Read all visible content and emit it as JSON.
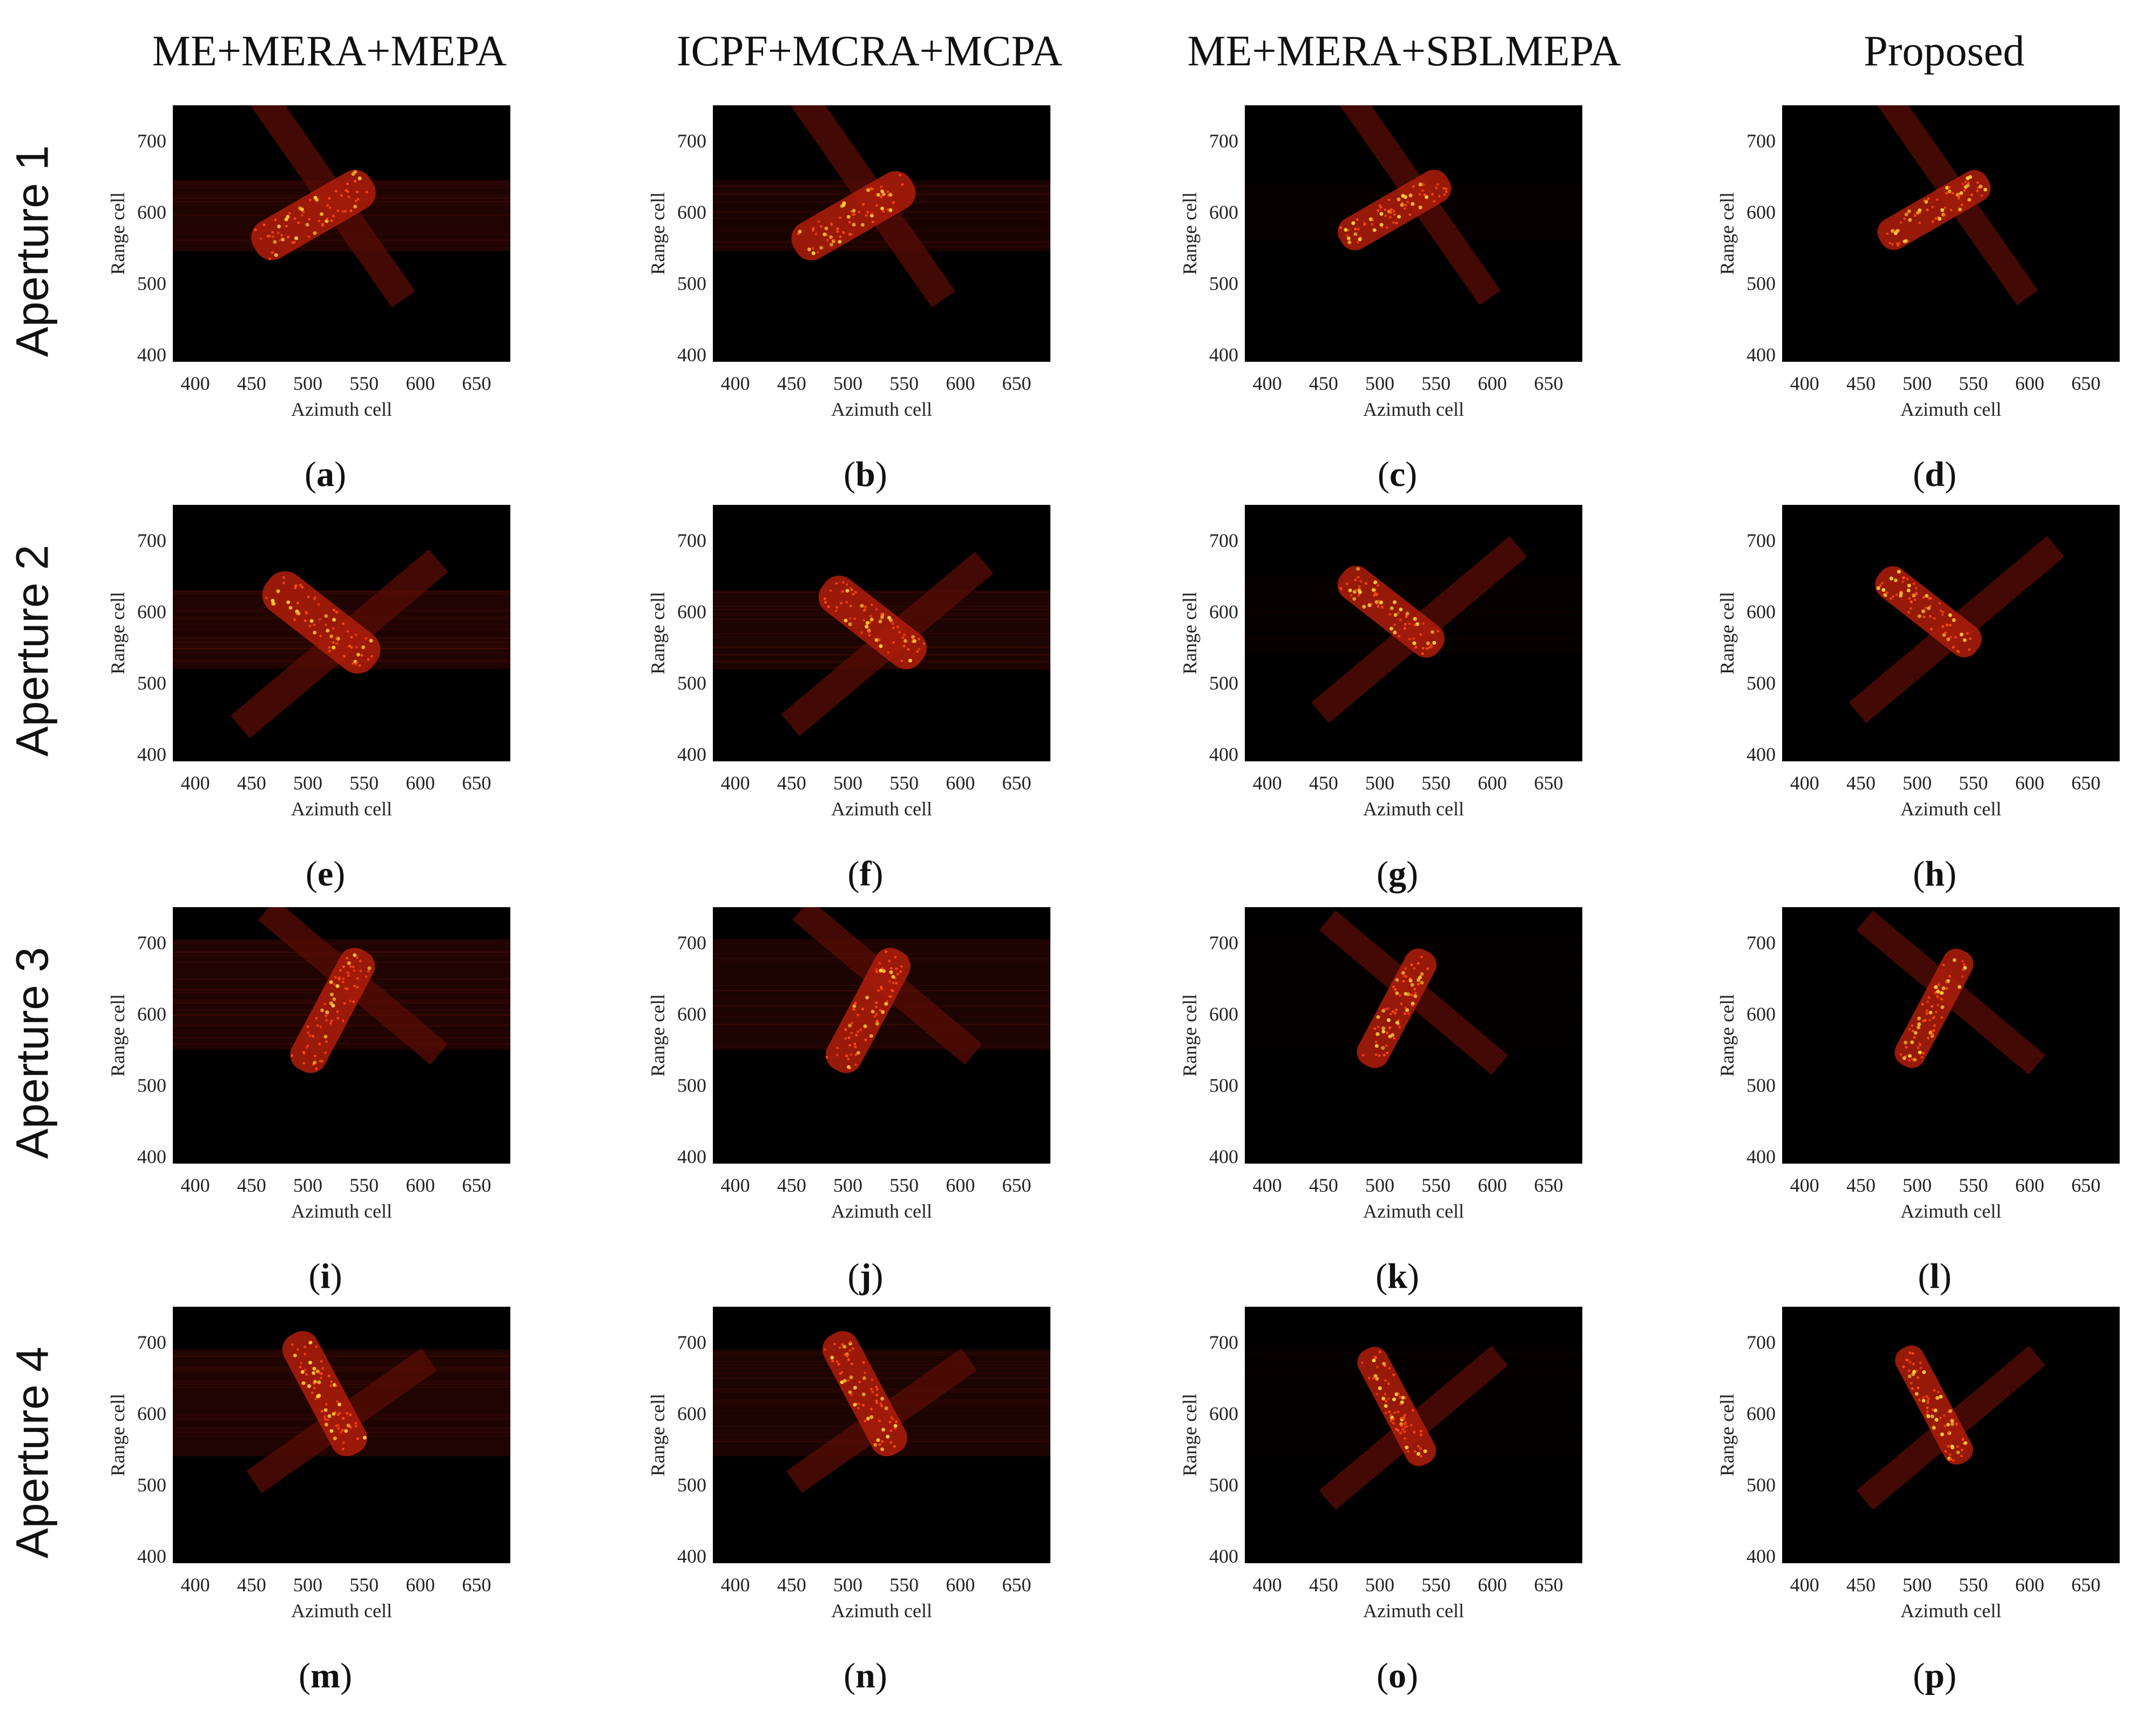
{
  "figure": {
    "column_headers": [
      "ME+MERA+MEPA",
      "ICPF+MCRA+MCPA",
      "ME+MERA+SBLMEPA",
      "Proposed"
    ],
    "row_labels": [
      "Aperture 1",
      "Aperture 2",
      "Aperture 3",
      "Aperture 4"
    ]
  },
  "colors": {
    "background": "#000000",
    "target_dim": "#5a0c05",
    "target_mid": "#b01d0a",
    "target_bright": "#ff4a10",
    "scatter_hot": "#ffd23a"
  },
  "chart_data": [
    {
      "type": "heatmap",
      "panel": "a",
      "caption": "a",
      "method": "ME+MERA+MEPA",
      "aperture": "Aperture 1",
      "xlabel": "Azimuth cell",
      "ylabel": "Range cell",
      "x_ticks": [
        400,
        450,
        500,
        550,
        600,
        650
      ],
      "y_ticks": [
        400,
        500,
        600,
        700
      ],
      "xlim": [
        380,
        680
      ],
      "ylim": [
        390,
        750
      ],
      "colormap": "hot",
      "target": {
        "hull_center": [
          505,
          596
        ],
        "hull_angle": 30,
        "hull_length": 120,
        "hull_width": 58,
        "wing_center": [
          522,
          620
        ],
        "wing_angle": -55,
        "wing_length": 220,
        "wing_width": 40
      },
      "smear": {
        "range_band": [
          545,
          645
        ],
        "level": 0.35
      }
    },
    {
      "type": "heatmap",
      "panel": "b",
      "caption": "b",
      "method": "ICPF+MCRA+MCPA",
      "aperture": "Aperture 1",
      "xlabel": "Azimuth cell",
      "ylabel": "Range cell",
      "x_ticks": [
        400,
        450,
        500,
        550,
        600,
        650
      ],
      "y_ticks": [
        400,
        500,
        600,
        700
      ],
      "xlim": [
        380,
        680
      ],
      "ylim": [
        390,
        750
      ],
      "colormap": "hot",
      "target": {
        "hull_center": [
          505,
          595
        ],
        "hull_angle": 30,
        "hull_length": 120,
        "hull_width": 56,
        "wing_center": [
          522,
          620
        ],
        "wing_angle": -55,
        "wing_length": 220,
        "wing_width": 40
      },
      "smear": {
        "range_band": [
          545,
          645
        ],
        "level": 0.28
      }
    },
    {
      "type": "heatmap",
      "panel": "c",
      "caption": "c",
      "method": "ME+MERA+SBLMEPA",
      "aperture": "Aperture 1",
      "xlabel": "Azimuth cell",
      "ylabel": "Range cell",
      "x_ticks": [
        400,
        450,
        500,
        550,
        600,
        650
      ],
      "y_ticks": [
        400,
        500,
        600,
        700
      ],
      "xlim": [
        380,
        680
      ],
      "ylim": [
        390,
        750
      ],
      "colormap": "hot",
      "target": {
        "hull_center": [
          513,
          603
        ],
        "hull_angle": 30,
        "hull_length": 110,
        "hull_width": 48,
        "wing_center": [
          535,
          622
        ],
        "wing_angle": -55,
        "wing_length": 220,
        "wing_width": 36
      },
      "smear": {
        "range_band": [
          560,
          640
        ],
        "level": 0.05
      }
    },
    {
      "type": "heatmap",
      "panel": "d",
      "caption": "d",
      "method": "Proposed",
      "aperture": "Aperture 1",
      "xlabel": "Azimuth cell",
      "ylabel": "Range cell",
      "x_ticks": [
        400,
        450,
        500,
        550,
        600,
        650
      ],
      "y_ticks": [
        400,
        500,
        600,
        700
      ],
      "xlim": [
        380,
        680
      ],
      "ylim": [
        390,
        750
      ],
      "colormap": "hot",
      "target": {
        "hull_center": [
          515,
          603
        ],
        "hull_angle": 30,
        "hull_length": 110,
        "hull_width": 46,
        "wing_center": [
          535,
          622
        ],
        "wing_angle": -55,
        "wing_length": 220,
        "wing_width": 36
      },
      "smear": {
        "range_band": [
          560,
          640
        ],
        "level": 0.0
      }
    },
    {
      "type": "heatmap",
      "panel": "e",
      "caption": "e",
      "method": "ME+MERA+MEPA",
      "aperture": "Aperture 2",
      "xlabel": "Azimuth cell",
      "ylabel": "Range cell",
      "x_ticks": [
        400,
        450,
        500,
        550,
        600,
        650
      ],
      "y_ticks": [
        400,
        500,
        600,
        700
      ],
      "xlim": [
        380,
        680
      ],
      "ylim": [
        390,
        750
      ],
      "colormap": "hot",
      "target": {
        "hull_center": [
          512,
          585
        ],
        "hull_angle": -38,
        "hull_length": 120,
        "hull_width": 62,
        "wing_center": [
          528,
          555
        ],
        "wing_angle": 40,
        "wing_length": 230,
        "wing_width": 42
      },
      "smear": {
        "range_band": [
          520,
          630
        ],
        "level": 0.35
      }
    },
    {
      "type": "heatmap",
      "panel": "f",
      "caption": "f",
      "method": "ICPF+MCRA+MCPA",
      "aperture": "Aperture 2",
      "xlabel": "Azimuth cell",
      "ylabel": "Range cell",
      "x_ticks": [
        400,
        450,
        500,
        550,
        600,
        650
      ],
      "y_ticks": [
        400,
        500,
        600,
        700
      ],
      "xlim": [
        380,
        680
      ],
      "ylim": [
        390,
        750
      ],
      "colormap": "hot",
      "target": {
        "hull_center": [
          522,
          585
        ],
        "hull_angle": -38,
        "hull_length": 110,
        "hull_width": 56,
        "wing_center": [
          535,
          555
        ],
        "wing_angle": 40,
        "wing_length": 225,
        "wing_width": 40
      },
      "smear": {
        "range_band": [
          520,
          630
        ],
        "level": 0.3
      }
    },
    {
      "type": "heatmap",
      "panel": "g",
      "caption": "g",
      "method": "ME+MERA+SBLMEPA",
      "aperture": "Aperture 2",
      "xlabel": "Azimuth cell",
      "ylabel": "Range cell",
      "x_ticks": [
        400,
        450,
        500,
        550,
        600,
        650
      ],
      "y_ticks": [
        400,
        500,
        600,
        700
      ],
      "xlim": [
        380,
        680
      ],
      "ylim": [
        390,
        750
      ],
      "colormap": "hot",
      "target": {
        "hull_center": [
          510,
          600
        ],
        "hull_angle": -38,
        "hull_length": 110,
        "hull_width": 50,
        "wing_center": [
          535,
          575
        ],
        "wing_angle": 40,
        "wing_length": 230,
        "wing_width": 38
      },
      "smear": {
        "range_band": [
          540,
          650
        ],
        "level": 0.05
      }
    },
    {
      "type": "heatmap",
      "panel": "h",
      "caption": "h",
      "method": "Proposed",
      "aperture": "Aperture 2",
      "xlabel": "Azimuth cell",
      "ylabel": "Range cell",
      "x_ticks": [
        400,
        450,
        500,
        550,
        600,
        650
      ],
      "y_ticks": [
        400,
        500,
        600,
        700
      ],
      "xlim": [
        380,
        680
      ],
      "ylim": [
        390,
        750
      ],
      "colormap": "hot",
      "target": {
        "hull_center": [
          510,
          600
        ],
        "hull_angle": -38,
        "hull_length": 110,
        "hull_width": 48,
        "wing_center": [
          535,
          575
        ],
        "wing_angle": 40,
        "wing_length": 230,
        "wing_width": 38
      },
      "smear": {
        "range_band": [
          540,
          650
        ],
        "level": 0.0
      }
    },
    {
      "type": "heatmap",
      "panel": "i",
      "caption": "i",
      "method": "ME+MERA+MEPA",
      "aperture": "Aperture 3",
      "xlabel": "Azimuth cell",
      "ylabel": "Range cell",
      "x_ticks": [
        400,
        450,
        500,
        550,
        600,
        650
      ],
      "y_ticks": [
        400,
        500,
        600,
        700
      ],
      "xlim": [
        380,
        680
      ],
      "ylim": [
        390,
        750
      ],
      "colormap": "hot",
      "target": {
        "hull_center": [
          522,
          605
        ],
        "hull_angle": 62,
        "hull_length": 120,
        "hull_width": 52,
        "wing_center": [
          540,
          645
        ],
        "wing_angle": -40,
        "wing_length": 200,
        "wing_width": 38
      },
      "smear": {
        "range_band": [
          550,
          705
        ],
        "level": 0.35
      }
    },
    {
      "type": "heatmap",
      "panel": "j",
      "caption": "j",
      "method": "ICPF+MCRA+MCPA",
      "aperture": "Aperture 3",
      "xlabel": "Azimuth cell",
      "ylabel": "Range cell",
      "x_ticks": [
        400,
        450,
        500,
        550,
        600,
        650
      ],
      "y_ticks": [
        400,
        500,
        600,
        700
      ],
      "xlim": [
        380,
        680
      ],
      "ylim": [
        390,
        750
      ],
      "colormap": "hot",
      "target": {
        "hull_center": [
          518,
          605
        ],
        "hull_angle": 62,
        "hull_length": 120,
        "hull_width": 52,
        "wing_center": [
          535,
          645
        ],
        "wing_angle": -40,
        "wing_length": 200,
        "wing_width": 38
      },
      "smear": {
        "range_band": [
          550,
          705
        ],
        "level": 0.3
      }
    },
    {
      "type": "heatmap",
      "panel": "k",
      "caption": "k",
      "method": "ME+MERA+SBLMEPA",
      "aperture": "Aperture 3",
      "xlabel": "Azimuth cell",
      "ylabel": "Range cell",
      "x_ticks": [
        400,
        450,
        500,
        550,
        600,
        650
      ],
      "y_ticks": [
        400,
        500,
        600,
        700
      ],
      "xlim": [
        380,
        680
      ],
      "ylim": [
        390,
        750
      ],
      "colormap": "hot",
      "target": {
        "hull_center": [
          515,
          608
        ],
        "hull_angle": 62,
        "hull_length": 115,
        "hull_width": 46,
        "wing_center": [
          530,
          630
        ],
        "wing_angle": -40,
        "wing_length": 200,
        "wing_width": 36
      },
      "smear": {
        "range_band": [
          550,
          705
        ],
        "level": 0.04
      }
    },
    {
      "type": "heatmap",
      "panel": "l",
      "caption": "l",
      "method": "Proposed",
      "aperture": "Aperture 3",
      "xlabel": "Azimuth cell",
      "ylabel": "Range cell",
      "x_ticks": [
        400,
        450,
        500,
        550,
        600,
        650
      ],
      "y_ticks": [
        400,
        500,
        600,
        700
      ],
      "xlim": [
        380,
        680
      ],
      "ylim": [
        390,
        750
      ],
      "colormap": "hot",
      "target": {
        "hull_center": [
          515,
          608
        ],
        "hull_angle": 62,
        "hull_length": 115,
        "hull_width": 44,
        "wing_center": [
          530,
          630
        ],
        "wing_angle": -40,
        "wing_length": 200,
        "wing_width": 36
      },
      "smear": {
        "range_band": [
          550,
          705
        ],
        "level": 0.0
      }
    },
    {
      "type": "heatmap",
      "panel": "m",
      "caption": "m",
      "method": "ME+MERA+MEPA",
      "aperture": "Aperture 4",
      "xlabel": "Azimuth cell",
      "ylabel": "Range cell",
      "x_ticks": [
        400,
        450,
        500,
        550,
        600,
        650
      ],
      "y_ticks": [
        400,
        500,
        600,
        700
      ],
      "xlim": [
        380,
        680
      ],
      "ylim": [
        390,
        750
      ],
      "colormap": "hot",
      "target": {
        "hull_center": [
          515,
          628
        ],
        "hull_angle": -62,
        "hull_length": 120,
        "hull_width": 52,
        "wing_center": [
          530,
          590
        ],
        "wing_angle": 35,
        "wing_length": 190,
        "wing_width": 38
      },
      "smear": {
        "range_band": [
          540,
          690
        ],
        "level": 0.35
      }
    },
    {
      "type": "heatmap",
      "panel": "n",
      "caption": "n",
      "method": "ICPF+MCRA+MCPA",
      "aperture": "Aperture 4",
      "xlabel": "Azimuth cell",
      "ylabel": "Range cell",
      "x_ticks": [
        400,
        450,
        500,
        550,
        600,
        650
      ],
      "y_ticks": [
        400,
        500,
        600,
        700
      ],
      "xlim": [
        380,
        680
      ],
      "ylim": [
        390,
        750
      ],
      "colormap": "hot",
      "target": {
        "hull_center": [
          515,
          628
        ],
        "hull_angle": -62,
        "hull_length": 120,
        "hull_width": 52,
        "wing_center": [
          530,
          590
        ],
        "wing_angle": 35,
        "wing_length": 190,
        "wing_width": 38
      },
      "smear": {
        "range_band": [
          540,
          690
        ],
        "level": 0.3
      }
    },
    {
      "type": "heatmap",
      "panel": "o",
      "caption": "o",
      "method": "ME+MERA+SBLMEPA",
      "aperture": "Aperture 4",
      "xlabel": "Azimuth cell",
      "ylabel": "Range cell",
      "x_ticks": [
        400,
        450,
        500,
        550,
        600,
        650
      ],
      "y_ticks": [
        400,
        500,
        600,
        700
      ],
      "xlim": [
        380,
        680
      ],
      "ylim": [
        390,
        750
      ],
      "colormap": "hot",
      "target": {
        "hull_center": [
          515,
          610
        ],
        "hull_angle": -62,
        "hull_length": 115,
        "hull_width": 44,
        "wing_center": [
          530,
          580
        ],
        "wing_angle": 40,
        "wing_length": 200,
        "wing_width": 36
      },
      "smear": {
        "range_band": [
          540,
          690
        ],
        "level": 0.04
      }
    },
    {
      "type": "heatmap",
      "panel": "p",
      "caption": "p",
      "method": "Proposed",
      "aperture": "Aperture 4",
      "xlabel": "Azimuth cell",
      "ylabel": "Range cell",
      "x_ticks": [
        400,
        450,
        500,
        550,
        600,
        650
      ],
      "y_ticks": [
        400,
        500,
        600,
        700
      ],
      "xlim": [
        380,
        680
      ],
      "ylim": [
        390,
        750
      ],
      "colormap": "hot",
      "target": {
        "hull_center": [
          515,
          612
        ],
        "hull_angle": -62,
        "hull_length": 115,
        "hull_width": 42,
        "wing_center": [
          530,
          580
        ],
        "wing_angle": 40,
        "wing_length": 200,
        "wing_width": 36
      },
      "smear": {
        "range_band": [
          540,
          690
        ],
        "level": 0.0
      }
    }
  ]
}
